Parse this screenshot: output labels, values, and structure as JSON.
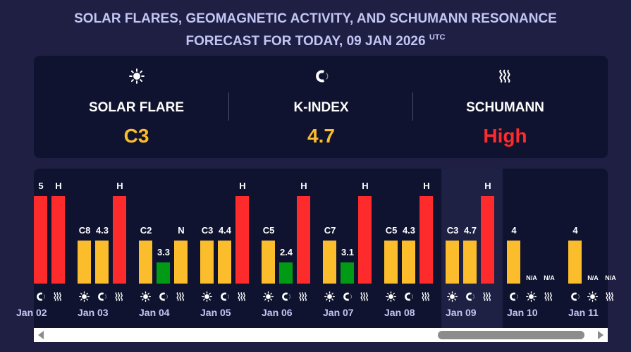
{
  "header": {
    "title_line1": "SOLAR FLARES, GEOMAGNETIC ACTIVITY, AND SCHUMANN RESONANCE",
    "title_line2": "FORECAST FOR TODAY, 09 JAN 2026",
    "title_sup": "UTC"
  },
  "summary": [
    {
      "icon": "sun-icon",
      "label": "SOLAR FLARE",
      "value": "C3",
      "color": "#fbbd2c"
    },
    {
      "icon": "magnet-icon",
      "label": "K-INDEX",
      "value": "4.7",
      "color": "#fbbd2c"
    },
    {
      "icon": "waves-icon",
      "label": "SCHUMANN",
      "value": "High",
      "color": "#fd2b2b"
    }
  ],
  "colors": {
    "red": "#fd2b2b",
    "yellow": "#fbbd2c",
    "green": "#009a14"
  },
  "days": [
    {
      "date": "Jan 02",
      "bars": [
        null,
        {
          "type": "kp",
          "value": "5",
          "status": "red"
        },
        {
          "type": "schumann",
          "value": "H",
          "status": "red"
        }
      ]
    },
    {
      "date": "Jan 03",
      "bars": [
        {
          "type": "flare",
          "value": "C8",
          "status": "yellow"
        },
        {
          "type": "kp",
          "value": "4.3",
          "status": "yellow"
        },
        {
          "type": "schumann",
          "value": "H",
          "status": "red"
        }
      ]
    },
    {
      "date": "Jan 04",
      "bars": [
        {
          "type": "flare",
          "value": "C2",
          "status": "yellow"
        },
        {
          "type": "kp",
          "value": "3.3",
          "status": "green"
        },
        {
          "type": "schumann",
          "value": "N",
          "status": "yellow"
        }
      ]
    },
    {
      "date": "Jan 05",
      "bars": [
        {
          "type": "flare",
          "value": "C3",
          "status": "yellow"
        },
        {
          "type": "kp",
          "value": "4.4",
          "status": "yellow"
        },
        {
          "type": "schumann",
          "value": "H",
          "status": "red"
        }
      ]
    },
    {
      "date": "Jan 06",
      "bars": [
        {
          "type": "flare",
          "value": "C5",
          "status": "yellow"
        },
        {
          "type": "kp",
          "value": "2.4",
          "status": "green"
        },
        {
          "type": "schumann",
          "value": "H",
          "status": "red"
        }
      ]
    },
    {
      "date": "Jan 07",
      "bars": [
        {
          "type": "flare",
          "value": "C7",
          "status": "yellow"
        },
        {
          "type": "kp",
          "value": "3.1",
          "status": "green"
        },
        {
          "type": "schumann",
          "value": "H",
          "status": "red"
        }
      ]
    },
    {
      "date": "Jan 08",
      "bars": [
        {
          "type": "flare",
          "value": "C5",
          "status": "yellow"
        },
        {
          "type": "kp",
          "value": "4.3",
          "status": "yellow"
        },
        {
          "type": "schumann",
          "value": "H",
          "status": "red"
        }
      ]
    },
    {
      "date": "Jan 09",
      "today": true,
      "bars": [
        {
          "type": "flare",
          "value": "C3",
          "status": "yellow"
        },
        {
          "type": "kp",
          "value": "4.7",
          "status": "yellow"
        },
        {
          "type": "schumann",
          "value": "H",
          "status": "red"
        }
      ]
    },
    {
      "date": "Jan 10",
      "bars": [
        {
          "type": "kp",
          "value": "4",
          "status": "yellow"
        },
        {
          "type": "flare",
          "value": "N/A",
          "status": "none"
        },
        {
          "type": "schumann",
          "value": "N/A",
          "status": "none"
        }
      ]
    },
    {
      "date": "Jan 11",
      "bars": [
        {
          "type": "kp",
          "value": "4",
          "status": "yellow"
        },
        {
          "type": "flare",
          "value": "N/A",
          "status": "none"
        },
        {
          "type": "schumann",
          "value": "N/A",
          "status": "none"
        }
      ]
    }
  ]
}
